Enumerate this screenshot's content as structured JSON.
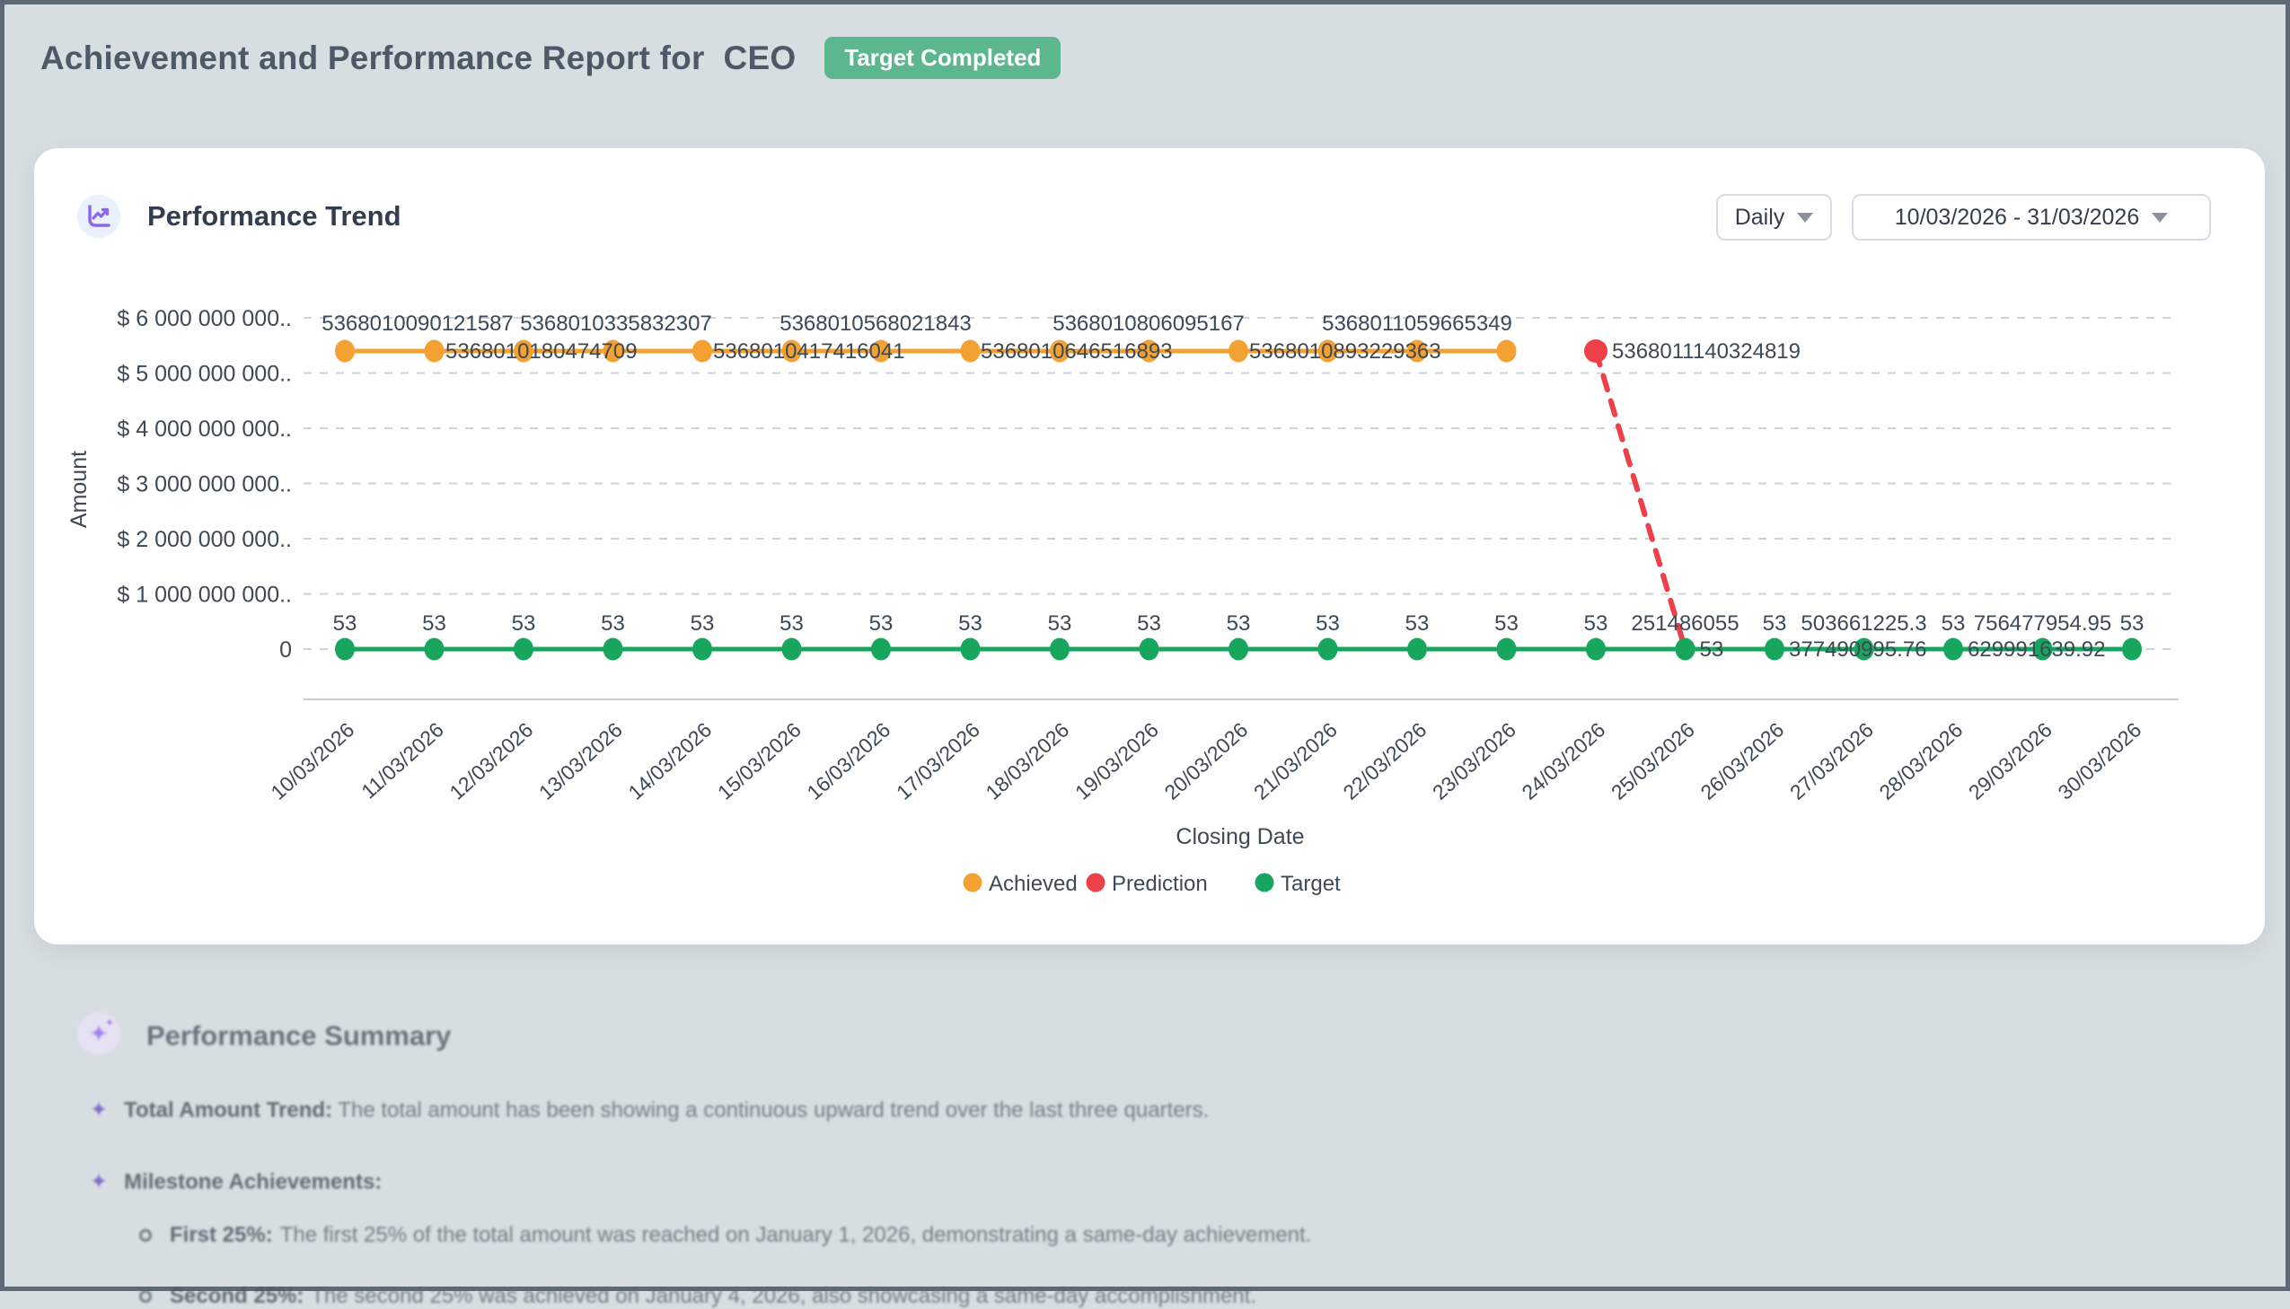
{
  "page": {
    "title": "Achievement and Performance Report for  CEO",
    "badge": "Target Completed"
  },
  "trend_card": {
    "title": "Performance Trend",
    "granularity_dropdown": "Daily",
    "date_range_dropdown": "10/03/2026 - 31/03/2026"
  },
  "chart_data": {
    "type": "line",
    "title": "Performance Trend",
    "xlabel": "Closing Date",
    "ylabel": "Amount",
    "grid": true,
    "legend_position": "bottom-center",
    "x_dates": [
      "10/03/2026",
      "11/03/2026",
      "12/03/2026",
      "13/03/2026",
      "14/03/2026",
      "15/03/2026",
      "16/03/2026",
      "17/03/2026",
      "18/03/2026",
      "19/03/2026",
      "20/03/2026",
      "21/03/2026",
      "22/03/2026",
      "23/03/2026",
      "24/03/2026",
      "25/03/2026",
      "26/03/2026",
      "27/03/2026",
      "28/03/2026",
      "29/03/2026",
      "30/03/2026"
    ],
    "y_axis": {
      "title": "Amount",
      "ticks": [
        "$ 6 000 000 000..",
        "$ 5 000 000 000..",
        "$ 4 000 000 000..",
        "$ 3 000 000 000..",
        "$ 2 000 000 000..",
        "$ 1 000 000 000..",
        "0"
      ]
    },
    "series": [
      {
        "name": "Achieved",
        "color": "#F2A132",
        "value_labels": [
          "5368010090121587",
          "5368010180474709",
          "5368010335832307",
          "5368010417416041",
          "5368010568021843",
          "5368010646516893",
          "5368010806095167",
          "5368010893229363",
          "5368011059665349"
        ]
      },
      {
        "name": "Prediction",
        "color": "#EE4048",
        "value_labels": [
          "5368011140324819",
          "251486055",
          "377490995.76",
          "503661225.3",
          "629991639.92",
          "756477954.95"
        ]
      },
      {
        "name": "Target",
        "color": "#18A65F",
        "constant_value": "53"
      }
    ],
    "labels": {
      "achieved_above": [
        {
          "cx": 427,
          "text": "5368010090121587"
        },
        {
          "cx": 648,
          "text": "5368010335832307"
        },
        {
          "cx": 937,
          "text": "5368010568021843"
        },
        {
          "cx": 1241,
          "text": "5368010806095167"
        },
        {
          "cx": 1540,
          "text": "5368011059665349"
        }
      ],
      "achieved_inline": [
        {
          "x": 458,
          "text": "5368010180474709"
        },
        {
          "x": 756,
          "text": "5368010417416041"
        },
        {
          "x": 1054,
          "text": "5368010646516893"
        },
        {
          "x": 1353,
          "text": "5368010893229363"
        },
        {
          "x": 1757,
          "text": "5368011140324819"
        }
      ],
      "target_above": [
        "53",
        "53",
        "53",
        "53",
        "53",
        "53",
        "53",
        "53",
        "53",
        "53",
        "53",
        "53",
        "53",
        "53",
        "53",
        "251486055",
        "53",
        "503661225.3",
        "53",
        "756477954.95",
        "53"
      ],
      "target_inline": [
        {
          "idx": 15,
          "text": "53"
        },
        {
          "idx": 16,
          "text": "377490995.76"
        },
        {
          "idx": 18,
          "text": "629991639.92"
        }
      ]
    },
    "legend": [
      {
        "label": "Achieved",
        "color": "#F2A132"
      },
      {
        "label": "Prediction",
        "color": "#EE4048"
      },
      {
        "label": "Target",
        "color": "#18A65F"
      }
    ]
  },
  "summary": {
    "title": "Performance Summary",
    "bullets": [
      {
        "label": "Total Amount Trend:",
        "text": "The total amount has been showing a continuous upward trend over the last three quarters."
      },
      {
        "label": "Milestone Achievements:",
        "text": ""
      }
    ],
    "sub_bullets": [
      {
        "label": "First 25%:",
        "text": "The first 25% of the total amount was reached on January 1, 2026, demonstrating a same-day achievement."
      },
      {
        "label": "Second 25%:",
        "text": "The second 25% was achieved on January 4, 2026, also showcasing a same-day accomplishment."
      }
    ]
  }
}
